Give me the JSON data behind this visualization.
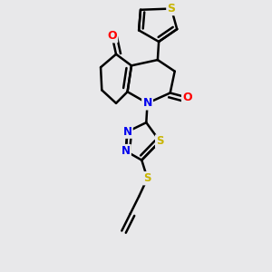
{
  "bg_color": "#e8e8ea",
  "bond_color": "#000000",
  "bond_width": 1.8,
  "atom_colors": {
    "S": "#c8b400",
    "O": "#ff0000",
    "N": "#0000ee",
    "C": "#000000"
  },
  "fig_width": 3.0,
  "fig_height": 3.0,
  "dpi": 100,
  "xlim": [
    -1.6,
    1.6
  ],
  "ylim": [
    -2.2,
    2.4
  ]
}
